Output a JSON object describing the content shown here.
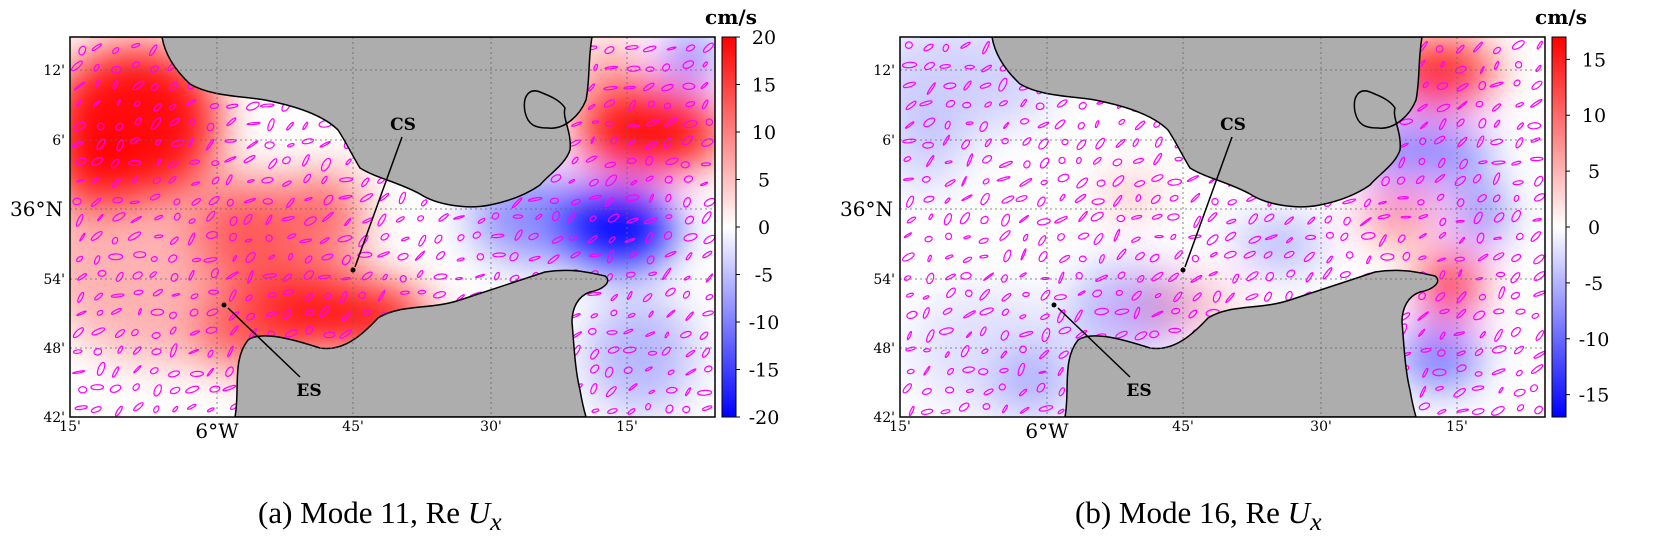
{
  "colorbar_unit": "cm/s",
  "colors": {
    "land": "#adadad",
    "positive": "#ff0000",
    "neutral": "#ffffff",
    "negative": "#0000ff",
    "ellipse": "#ff00ff"
  },
  "axes": {
    "lat_labels": [
      "12'",
      "6'",
      "36°N",
      "54'",
      "48'",
      "42'"
    ],
    "lon_labels": [
      "15'",
      "6°W",
      "45'",
      "30'",
      "15'"
    ]
  },
  "annotations": {
    "cs_label": "CS",
    "es_label": "ES"
  },
  "panels": [
    {
      "caption_prefix": "(a) Mode 11, ",
      "caption_re": "Re",
      "caption_var": "U",
      "caption_sub": "x",
      "colorbar_ticks": [
        "20",
        "15",
        "10",
        "5",
        "0",
        "-5",
        "-10",
        "-15",
        "-20"
      ],
      "colorbar_range": [
        -20,
        20
      ]
    },
    {
      "caption_prefix": "(b) Mode 16, ",
      "caption_re": "Re",
      "caption_var": "U",
      "caption_sub": "x",
      "colorbar_ticks": [
        "15",
        "10",
        "5",
        "0",
        "-5",
        "-10",
        "-15"
      ],
      "colorbar_range": [
        -17,
        17
      ]
    }
  ]
}
